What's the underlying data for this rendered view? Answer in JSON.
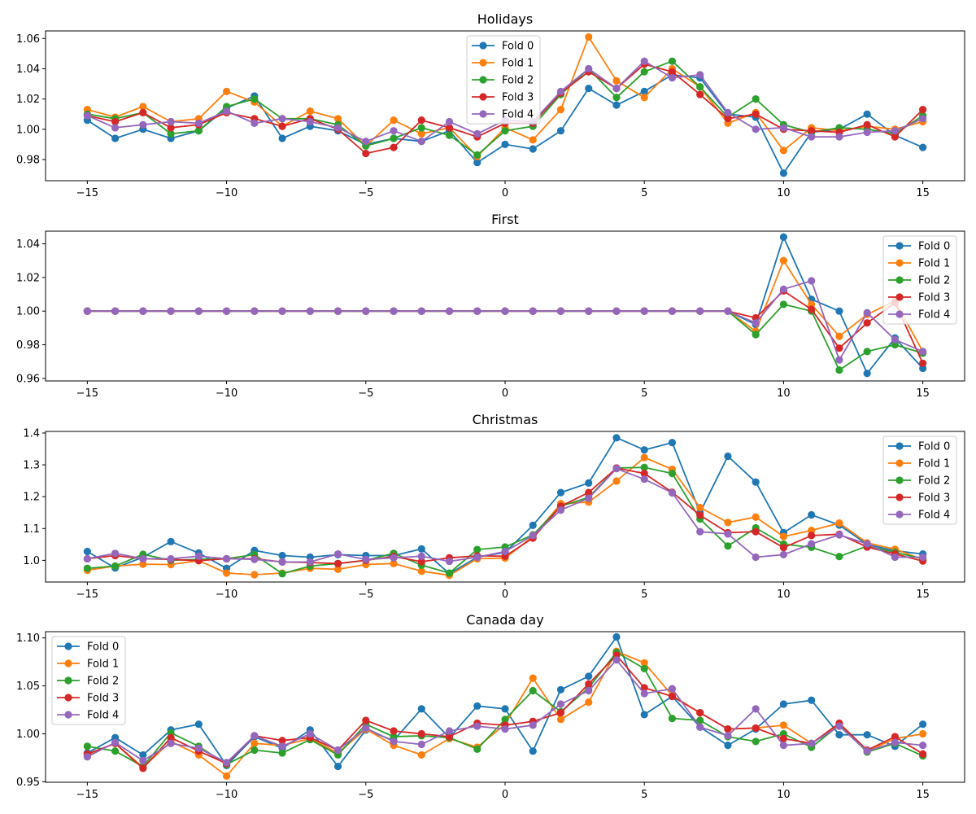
{
  "chart_data": [
    {
      "type": "line",
      "title": "Holidays",
      "xlabel": "",
      "ylabel": "",
      "xlim": [
        -16.5,
        16.5
      ],
      "ylim": [
        0.966,
        1.065
      ],
      "xticks": [
        -15,
        -10,
        -5,
        0,
        5,
        10,
        15
      ],
      "yticks": [
        0.98,
        1.0,
        1.02,
        1.04,
        1.06
      ],
      "ytick_labels": [
        "0.98",
        "1.00",
        "1.02",
        "1.04",
        "1.06"
      ],
      "legend": "top-center",
      "grid": false,
      "x": [
        -15,
        -14,
        -13,
        -12,
        -11,
        -10,
        -9,
        -8,
        -7,
        -6,
        -5,
        -4,
        -3,
        -2,
        -1,
        0,
        1,
        2,
        3,
        4,
        5,
        6,
        7,
        8,
        9,
        10,
        11,
        12,
        13,
        14,
        15
      ],
      "series": [
        {
          "name": "Fold 0",
          "color": "#1f77b4",
          "values": [
            1.006,
            0.994,
            1.0,
            0.994,
            0.999,
            1.014,
            1.022,
            0.994,
            1.002,
            0.999,
            0.99,
            0.994,
            0.992,
            0.999,
            0.978,
            0.99,
            0.987,
            0.999,
            1.027,
            1.016,
            1.025,
            1.036,
            1.034,
            1.01,
            1.008,
            0.971,
            0.998,
            1.0,
            1.01,
            0.996,
            0.988
          ]
        },
        {
          "name": "Fold 1",
          "color": "#ff7f0e",
          "values": [
            1.013,
            1.008,
            1.015,
            1.005,
            1.007,
            1.025,
            1.018,
            1.002,
            1.012,
            1.007,
            0.989,
            1.006,
            0.997,
            1.001,
            0.982,
            1.001,
            0.993,
            1.013,
            1.061,
            1.032,
            1.021,
            1.04,
            1.028,
            1.004,
            1.011,
            0.986,
            1.001,
            0.999,
            1.002,
            1.0,
            1.005
          ]
        },
        {
          "name": "Fold 2",
          "color": "#2ca02c",
          "values": [
            1.01,
            1.007,
            1.011,
            0.997,
            0.999,
            1.015,
            1.02,
            1.007,
            1.007,
            1.003,
            0.989,
            0.994,
            1.001,
            0.996,
            0.983,
            0.999,
            1.002,
            1.023,
            1.04,
            1.021,
            1.038,
            1.045,
            1.028,
            1.008,
            1.02,
            1.003,
            0.998,
            1.001,
            1.0,
            0.997,
            1.009
          ]
        },
        {
          "name": "Fold 3",
          "color": "#d62728",
          "values": [
            1.009,
            1.005,
            1.011,
            1.001,
            1.003,
            1.011,
            1.007,
            1.002,
            1.007,
            1.0,
            0.984,
            0.988,
            1.006,
            1.001,
            0.995,
            1.004,
            1.004,
            1.024,
            1.038,
            1.027,
            1.043,
            1.038,
            1.023,
            1.007,
            1.01,
            1.0,
            0.999,
            0.998,
            1.003,
            0.995,
            1.013
          ]
        },
        {
          "name": "Fold 4",
          "color": "#9467bd",
          "values": [
            1.009,
            1.001,
            1.003,
            1.005,
            1.004,
            1.012,
            1.004,
            1.007,
            1.005,
            1.001,
            0.992,
            0.999,
            0.992,
            1.005,
            0.997,
            1.006,
            1.005,
            1.025,
            1.04,
            1.027,
            1.045,
            1.034,
            1.036,
            1.011,
            1.0,
            1.001,
            0.995,
            0.995,
            0.998,
            0.999,
            1.007
          ]
        }
      ]
    },
    {
      "type": "line",
      "title": "First",
      "xlabel": "",
      "ylabel": "",
      "xlim": [
        -16.5,
        16.5
      ],
      "ylim": [
        0.9585,
        1.0475
      ],
      "xticks": [
        -15,
        -10,
        -5,
        0,
        5,
        10,
        15
      ],
      "yticks": [
        0.96,
        0.98,
        1.0,
        1.02,
        1.04
      ],
      "ytick_labels": [
        "0.96",
        "0.98",
        "1.00",
        "1.02",
        "1.04"
      ],
      "legend": "top-right",
      "grid": false,
      "x": [
        -15,
        -14,
        -13,
        -12,
        -11,
        -10,
        -9,
        -8,
        -7,
        -6,
        -5,
        -4,
        -3,
        -2,
        -1,
        0,
        1,
        2,
        3,
        4,
        5,
        6,
        7,
        8,
        9,
        10,
        11,
        12,
        13,
        14,
        15
      ],
      "series": [
        {
          "name": "Fold 0",
          "color": "#1f77b4",
          "values": [
            1,
            1,
            1,
            1,
            1,
            1,
            1,
            1,
            1,
            1,
            1,
            1,
            1,
            1,
            1,
            1,
            1,
            1,
            1,
            1,
            1,
            1,
            1,
            1,
            0.992,
            1.044,
            1.007,
            1.0,
            0.963,
            0.984,
            0.966
          ]
        },
        {
          "name": "Fold 1",
          "color": "#ff7f0e",
          "values": [
            1,
            1,
            1,
            1,
            1,
            1,
            1,
            1,
            1,
            1,
            1,
            1,
            1,
            1,
            1,
            1,
            1,
            1,
            1,
            1,
            1,
            1,
            1,
            1,
            0.988,
            1.03,
            1.004,
            0.985,
            0.998,
            1.006,
            0.976
          ]
        },
        {
          "name": "Fold 2",
          "color": "#2ca02c",
          "values": [
            1,
            1,
            1,
            1,
            1,
            1,
            1,
            1,
            1,
            1,
            1,
            1,
            1,
            1,
            1,
            1,
            1,
            1,
            1,
            1,
            1,
            1,
            1,
            1,
            0.986,
            1.004,
            1.0,
            0.965,
            0.976,
            0.98,
            0.975
          ]
        },
        {
          "name": "Fold 3",
          "color": "#d62728",
          "values": [
            1,
            1,
            1,
            1,
            1,
            1,
            1,
            1,
            1,
            1,
            1,
            1,
            1,
            1,
            1,
            1,
            1,
            1,
            1,
            1,
            1,
            1,
            1,
            1,
            0.996,
            1.012,
            1.001,
            0.978,
            0.993,
            1.005,
            0.969
          ]
        },
        {
          "name": "Fold 4",
          "color": "#9467bd",
          "values": [
            1,
            1,
            1,
            1,
            1,
            1,
            1,
            1,
            1,
            1,
            1,
            1,
            1,
            1,
            1,
            1,
            1,
            1,
            1,
            1,
            1,
            1,
            1,
            1,
            0.993,
            1.013,
            1.018,
            0.971,
            0.999,
            0.983,
            0.976
          ]
        }
      ]
    },
    {
      "type": "line",
      "title": "Christmas",
      "xlabel": "",
      "ylabel": "",
      "xlim": [
        -16.5,
        16.5
      ],
      "ylim": [
        0.932,
        1.405
      ],
      "xticks": [
        -15,
        -10,
        -5,
        0,
        5,
        10,
        15
      ],
      "yticks": [
        1.0,
        1.1,
        1.2,
        1.3,
        1.4
      ],
      "ytick_labels": [
        "1.0",
        "1.1",
        "1.2",
        "1.3",
        "1.4"
      ],
      "legend": "top-right",
      "grid": false,
      "x": [
        -15,
        -14,
        -13,
        -12,
        -11,
        -10,
        -9,
        -8,
        -7,
        -6,
        -5,
        -4,
        -3,
        -2,
        -1,
        0,
        1,
        2,
        3,
        4,
        5,
        6,
        7,
        8,
        9,
        10,
        11,
        12,
        13,
        14,
        15
      ],
      "series": [
        {
          "name": "Fold 0",
          "color": "#1f77b4",
          "values": [
            1.028,
            0.976,
            1.01,
            1.059,
            1.023,
            0.975,
            1.031,
            1.015,
            1.01,
            1.018,
            1.015,
            1.015,
            1.036,
            0.958,
            1.01,
            1.025,
            1.11,
            1.213,
            1.243,
            1.385,
            1.347,
            1.37,
            1.15,
            1.327,
            1.246,
            1.087,
            1.143,
            1.111,
            1.05,
            1.03,
            1.02
          ]
        },
        {
          "name": "Fold 1",
          "color": "#ff7f0e",
          "values": [
            0.969,
            0.982,
            0.988,
            0.987,
            0.999,
            0.96,
            0.955,
            0.96,
            0.975,
            0.972,
            0.987,
            0.99,
            0.966,
            0.953,
            1.005,
            1.007,
            1.075,
            1.178,
            1.183,
            1.249,
            1.323,
            1.286,
            1.166,
            1.119,
            1.136,
            1.075,
            1.094,
            1.117,
            1.055,
            1.035,
            1.003
          ]
        },
        {
          "name": "Fold 2",
          "color": "#2ca02c",
          "values": [
            0.975,
            0.982,
            1.019,
            1.0,
            1.003,
            1.005,
            1.018,
            0.958,
            0.982,
            0.99,
            1.0,
            1.022,
            0.985,
            0.96,
            1.034,
            1.042,
            1.08,
            1.17,
            1.198,
            1.29,
            1.292,
            1.273,
            1.13,
            1.045,
            1.102,
            1.051,
            1.041,
            1.012,
            1.045,
            1.025,
            1.005
          ]
        },
        {
          "name": "Fold 3",
          "color": "#d62728",
          "values": [
            1.005,
            1.015,
            1.005,
            1.003,
            0.999,
            1.005,
            1.005,
            0.995,
            0.993,
            0.99,
            1.0,
            1.012,
            0.996,
            1.008,
            1.014,
            1.013,
            1.07,
            1.17,
            1.213,
            1.29,
            1.273,
            1.214,
            1.142,
            1.087,
            1.09,
            1.04,
            1.078,
            1.082,
            1.042,
            1.02,
            0.998
          ]
        },
        {
          "name": "Fold 4",
          "color": "#9467bd",
          "values": [
            1.005,
            1.022,
            1.005,
            1.005,
            1.013,
            1.005,
            1.003,
            0.995,
            0.995,
            1.02,
            1.003,
            1.008,
            1.013,
            0.997,
            1.01,
            1.028,
            1.078,
            1.158,
            1.195,
            1.288,
            1.255,
            1.212,
            1.09,
            1.083,
            1.01,
            1.018,
            1.052,
            1.08,
            1.052,
            1.01,
            1.01
          ]
        }
      ]
    },
    {
      "type": "line",
      "title": "Canada day",
      "xlabel": "",
      "ylabel": "",
      "xlim": [
        -16.5,
        16.5
      ],
      "ylim": [
        0.9495,
        1.1065
      ],
      "xticks": [
        -15,
        -10,
        -5,
        0,
        5,
        10,
        15
      ],
      "yticks": [
        0.95,
        1.0,
        1.05,
        1.1
      ],
      "ytick_labels": [
        "0.95",
        "1.00",
        "1.05",
        "1.10"
      ],
      "legend": "top-left",
      "grid": false,
      "x": [
        -15,
        -14,
        -13,
        -12,
        -11,
        -10,
        -9,
        -8,
        -7,
        -6,
        -5,
        -4,
        -3,
        -2,
        -1,
        0,
        1,
        2,
        3,
        4,
        5,
        6,
        7,
        8,
        9,
        10,
        11,
        12,
        13,
        14,
        15
      ],
      "series": [
        {
          "name": "Fold 0",
          "color": "#1f77b4",
          "values": [
            0.98,
            0.996,
            0.978,
            1.004,
            1.01,
            0.967,
            0.997,
            0.985,
            1.004,
            0.966,
            1.004,
            0.993,
            1.026,
            0.996,
            1.029,
            1.026,
            0.982,
            1.046,
            1.06,
            1.101,
            1.02,
            1.039,
            1.007,
            0.988,
            1.005,
            1.031,
            1.035,
            0.999,
            0.999,
            0.987,
            1.01
          ]
        },
        {
          "name": "Fold 1",
          "color": "#ff7f0e",
          "values": [
            0.978,
            0.99,
            0.965,
            0.992,
            0.978,
            0.956,
            0.99,
            0.988,
            0.995,
            0.98,
            1.005,
            0.988,
            0.978,
            0.995,
            0.986,
            1.01,
            1.058,
            1.015,
            1.033,
            1.086,
            1.074,
            1.04,
            1.022,
            1.005,
            1.006,
            1.009,
            0.99,
            1.01,
            0.982,
            0.995,
            1.0
          ]
        },
        {
          "name": "Fold 2",
          "color": "#2ca02c",
          "values": [
            0.987,
            0.982,
            0.966,
            1.001,
            0.987,
            0.968,
            0.983,
            0.98,
            0.994,
            0.978,
            1.01,
            0.997,
            0.998,
            0.996,
            0.984,
            1.015,
            1.045,
            1.023,
            1.048,
            1.085,
            1.068,
            1.016,
            1.014,
            0.997,
            0.992,
            1.0,
            0.986,
            1.009,
            0.981,
            0.99,
            0.977
          ]
        },
        {
          "name": "Fold 3",
          "color": "#d62728",
          "values": [
            0.979,
            0.99,
            0.964,
            0.996,
            0.982,
            0.969,
            0.998,
            0.993,
            0.996,
            0.983,
            1.014,
            1.003,
            1.0,
            0.997,
            1.011,
            1.009,
            1.013,
            1.022,
            1.052,
            1.082,
            1.048,
            1.039,
            1.022,
            1.005,
            1.006,
            0.995,
            0.99,
            1.011,
            0.983,
            0.997,
            0.979
          ]
        },
        {
          "name": "Fold 4",
          "color": "#9467bd",
          "values": [
            0.976,
            0.991,
            0.972,
            0.99,
            0.985,
            0.97,
            0.998,
            0.987,
            1.0,
            0.983,
            1.006,
            0.992,
            0.989,
            1.003,
            1.008,
            1.005,
            1.009,
            1.031,
            1.045,
            1.077,
            1.042,
            1.047,
            1.007,
            0.998,
            1.026,
            0.988,
            0.99,
            1.008,
            0.982,
            0.991,
            0.988
          ]
        }
      ]
    }
  ]
}
